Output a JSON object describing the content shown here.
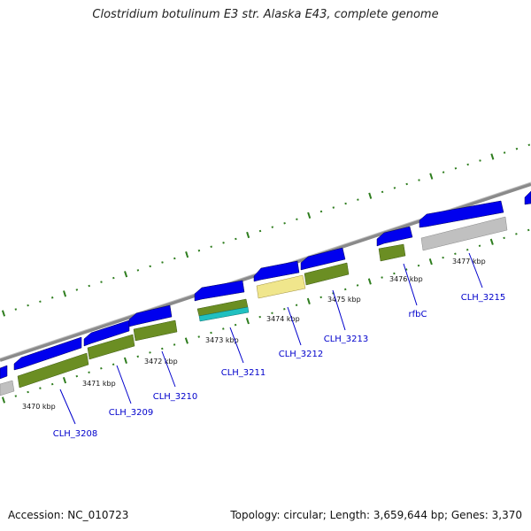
{
  "title": "Clostridium botulinum E3 str. Alaska E43, complete genome",
  "footer": {
    "accession": "Accession: NC_010723",
    "summary": "Topology: circular; Length: 3,659,644 bp; Genes: 3,370"
  },
  "colors": {
    "background": "#ffffff",
    "backbone": "#8a8a8a",
    "tick": "#2e7d1e",
    "gene_arrow": "#0000ee",
    "cds_olive": "#6b8e23",
    "cds_gray": "#c0c0c0",
    "cds_cyan": "#20c0c0",
    "cds_pale_yellow": "#f0e68c",
    "label": "#0000cc",
    "kbp_label": "#111111"
  },
  "kbp_markers": [
    "3470 kbp",
    "3471 kbp",
    "3472 kbp",
    "3473 kbp",
    "3474 kbp",
    "3475 kbp",
    "3476 kbp",
    "3477 kbp"
  ],
  "gene_labels": [
    "CLH_3208",
    "CLH_3209",
    "CLH_3210",
    "CLH_3211",
    "CLH_3212",
    "CLH_3213",
    "rfbC",
    "CLH_3215"
  ]
}
